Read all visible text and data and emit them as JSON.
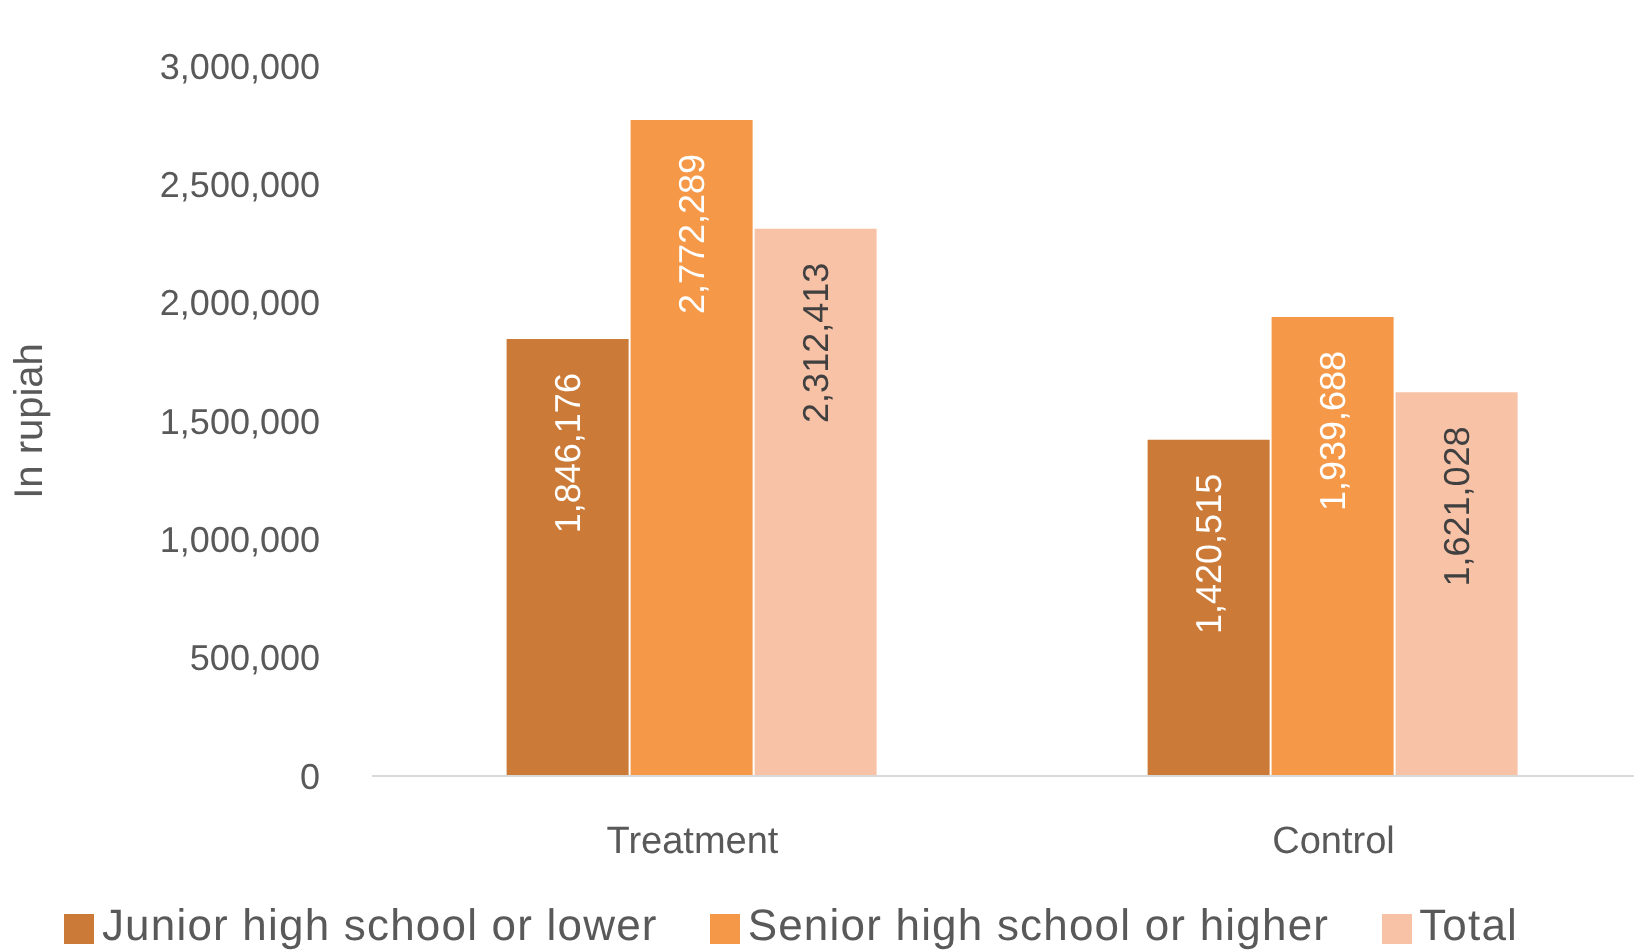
{
  "chart_data": {
    "type": "bar",
    "ylabel": "In rupiah",
    "categories": [
      "Treatment",
      "Control"
    ],
    "series": [
      {
        "name": "Junior high school or lower",
        "color": "#cb7a37",
        "values": [
          1846176,
          1420515
        ],
        "value_labels": [
          "1,846,176",
          "1,420,515"
        ]
      },
      {
        "name": "Senior high school or higher",
        "color": "#f59848",
        "values": [
          2772289,
          1939688
        ],
        "value_labels": [
          "2,772,289",
          "1,939,688"
        ]
      },
      {
        "name": "Total",
        "color": "#f8c2a7",
        "values": [
          2312413,
          1621028
        ],
        "value_labels": [
          "2,312,413",
          "1,621,028"
        ]
      }
    ],
    "ylim": [
      0,
      3000000
    ],
    "yticks": [
      0,
      {
        "value": 500000,
        "label": "500,000"
      },
      {
        "value": 1000000,
        "label": "1,000,000"
      },
      {
        "value": 1500000,
        "label": "1,500,000"
      },
      {
        "value": 2000000,
        "label": "2,000,000"
      },
      {
        "value": 2500000,
        "label": "2,500,000"
      },
      {
        "value": 3000000,
        "label": "3,000,000"
      }
    ],
    "grid": false,
    "legend": "bottom"
  }
}
